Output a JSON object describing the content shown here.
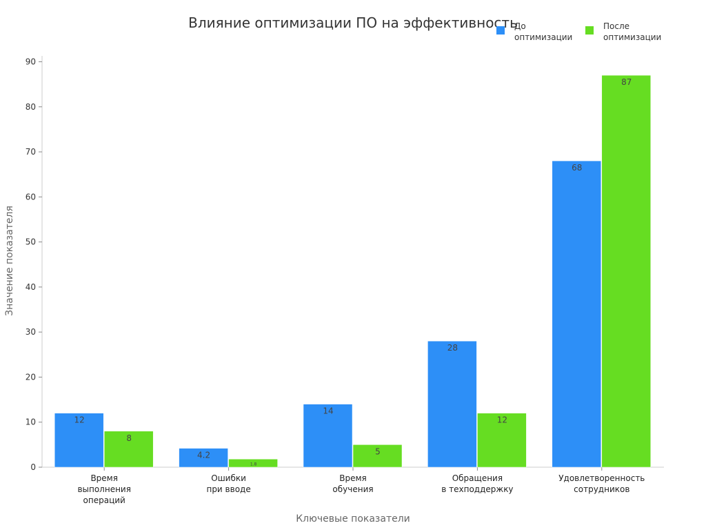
{
  "chart_data": {
    "type": "bar",
    "title": "Влияние оптимизации ПО на эффективность",
    "xlabel": "Ключевые показатели",
    "ylabel": "Значение показателя",
    "ylim": [
      0,
      90
    ],
    "yticks": [
      0,
      10,
      20,
      30,
      40,
      50,
      60,
      70,
      80,
      90
    ],
    "grid": false,
    "legend_position": "top-right",
    "categories": [
      [
        "Время",
        "выполнения",
        "операций"
      ],
      [
        "Ошибки",
        "при вводе"
      ],
      [
        "Время",
        "обучения"
      ],
      [
        "Обращения",
        "в техподдержку"
      ],
      [
        "Удовлетворенность",
        "сотрудников"
      ]
    ],
    "series": [
      {
        "name": [
          "До",
          "оптимизации"
        ],
        "color": "#2d8ff7",
        "values": [
          12,
          4.2,
          14,
          28,
          68
        ],
        "labels": [
          "12",
          "4.2",
          "14",
          "28",
          "68"
        ]
      },
      {
        "name": [
          "После",
          "оптимизации"
        ],
        "color": "#66dd22",
        "values": [
          8,
          1.8,
          5,
          12,
          87
        ],
        "labels": [
          "8",
          "1.8",
          "5",
          "12",
          "87"
        ]
      }
    ]
  }
}
